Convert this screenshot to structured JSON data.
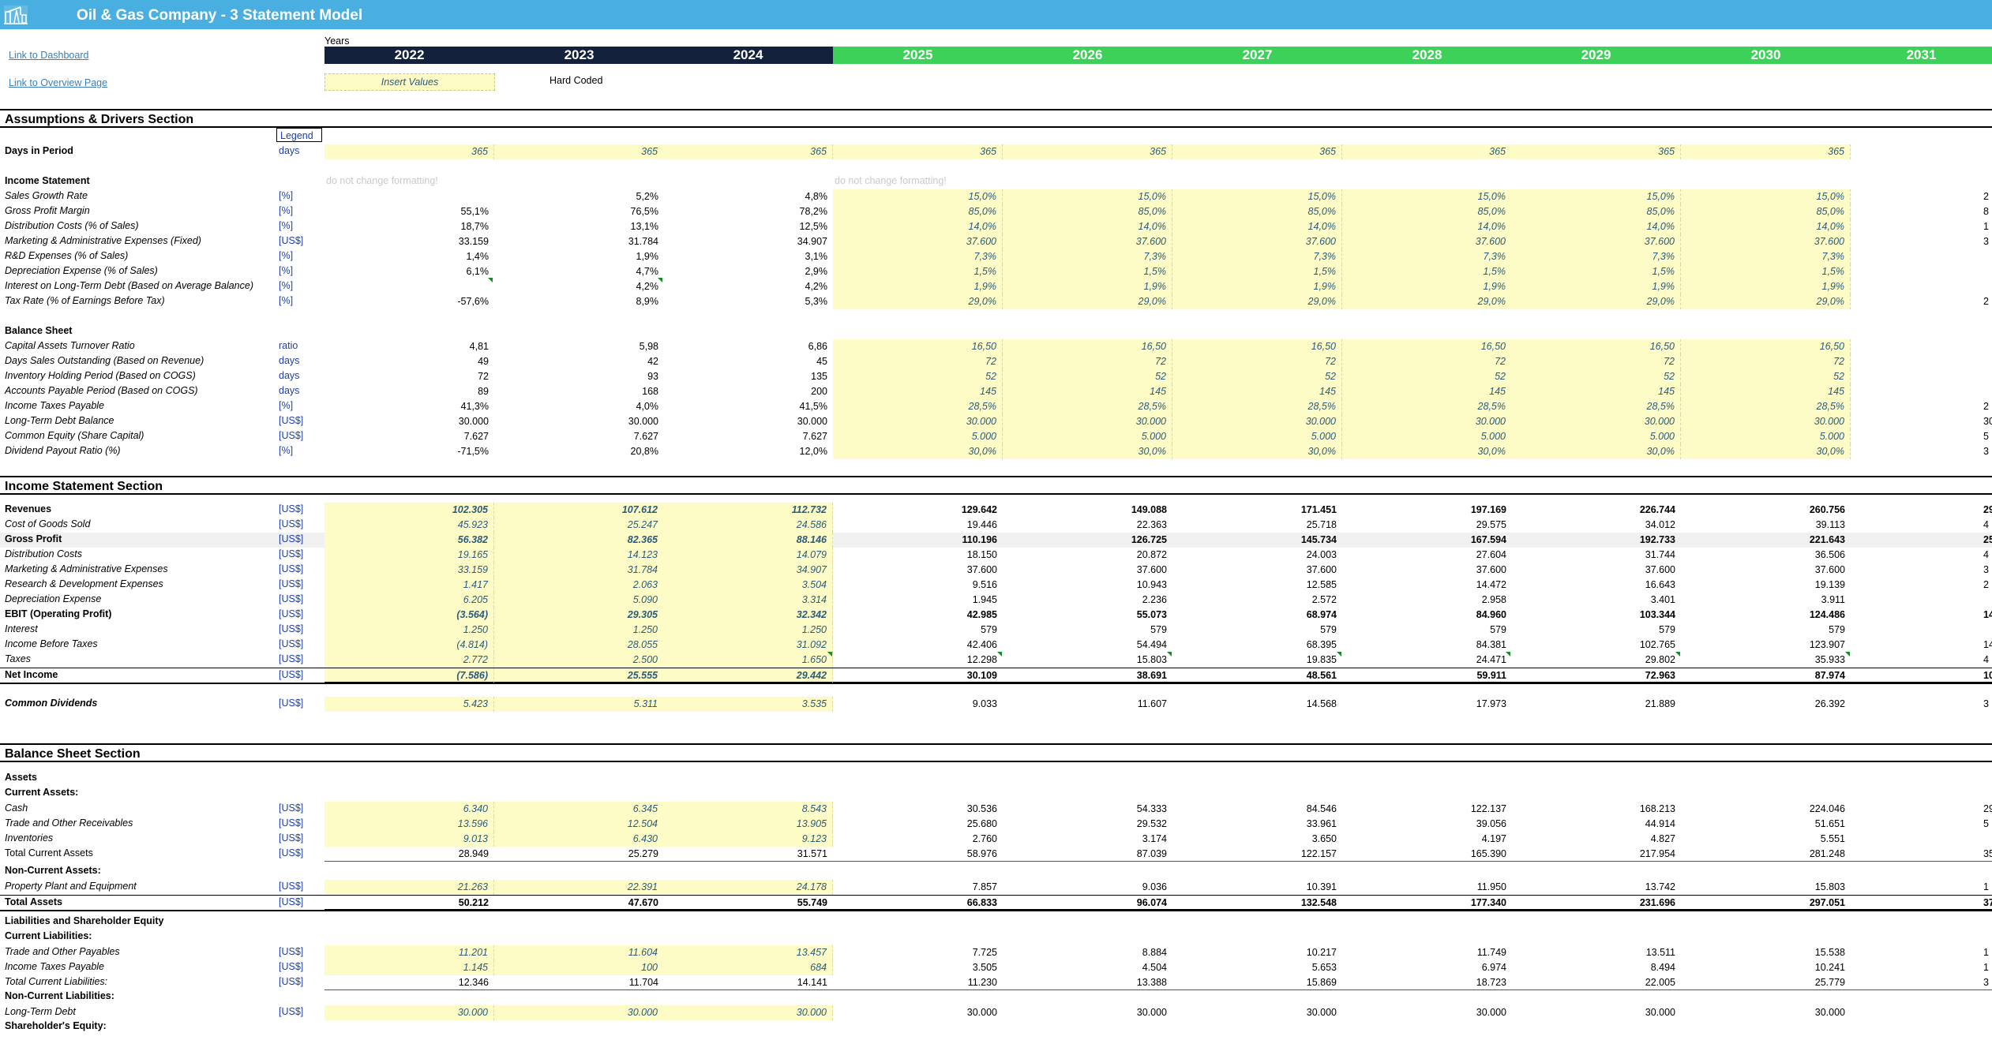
{
  "header": {
    "title": "Oil & Gas Company  - 3 Statement Model",
    "logo_icon": "oil-pump-icon"
  },
  "links": {
    "dashboard": "Link to Dashboard",
    "overview": "Link to Overview Page"
  },
  "years": {
    "label": "Years",
    "list": [
      "2022",
      "2023",
      "2024",
      "2025",
      "2026",
      "2027",
      "2028",
      "2029",
      "2030",
      "2031"
    ],
    "historical_color": "#14213d",
    "forecast_color": "#3ed15a"
  },
  "legend": {
    "insert_values": "Insert Values",
    "hard_coded": "Hard Coded",
    "legend_label": "Legend"
  },
  "hints": {
    "hist": "do not change formatting!",
    "fc": "do not change formatting!"
  },
  "sections": {
    "assumptions": "Assumptions & Drivers Section",
    "income": "Income Statement Section",
    "balance": "Balance Sheet Section"
  },
  "days": {
    "label": "Days in Period",
    "unit": "days",
    "values": [
      "365",
      "365",
      "365",
      "365",
      "365",
      "365",
      "365",
      "365",
      "365",
      ""
    ]
  },
  "subheaders": {
    "is": "Income Statement",
    "bs": "Balance Sheet",
    "assets": "Assets",
    "cur_assets": "Current Assets:",
    "noncur_assets": "Non-Current Assets:",
    "liab_eq": "Liabilities and Shareholder Equity",
    "cur_liab": "Current Liabilities:",
    "noncur_liab": "Non-Current Liabilities:",
    "sh_equity": "Shareholder's Equity:"
  },
  "is_drivers": [
    {
      "label": "Sales Growth Rate",
      "unit": "[%]",
      "values": [
        "",
        "5,2%",
        "4,8%",
        "15,0%",
        "15,0%",
        "15,0%",
        "15,0%",
        "15,0%",
        "15,0%",
        "2"
      ]
    },
    {
      "label": "Gross Profit Margin",
      "unit": "[%]",
      "values": [
        "55,1%",
        "76,5%",
        "78,2%",
        "85,0%",
        "85,0%",
        "85,0%",
        "85,0%",
        "85,0%",
        "85,0%",
        "8"
      ]
    },
    {
      "label": "Distribution Costs (% of Sales)",
      "unit": "[%]",
      "values": [
        "18,7%",
        "13,1%",
        "12,5%",
        "14,0%",
        "14,0%",
        "14,0%",
        "14,0%",
        "14,0%",
        "14,0%",
        "1"
      ]
    },
    {
      "label": "Marketing & Administrative Expenses (Fixed)",
      "unit": "[US$]",
      "values": [
        "33.159",
        "31.784",
        "34.907",
        "37.600",
        "37.600",
        "37.600",
        "37.600",
        "37.600",
        "37.600",
        "3"
      ]
    },
    {
      "label": "R&D Expenses (% of Sales)",
      "unit": "[%]",
      "values": [
        "1,4%",
        "1,9%",
        "3,1%",
        "7,3%",
        "7,3%",
        "7,3%",
        "7,3%",
        "7,3%",
        "7,3%",
        ""
      ]
    },
    {
      "label": "Depreciation Expense (% of Sales)",
      "unit": "[%]",
      "values": [
        "6,1%",
        "4,7%",
        "2,9%",
        "1,5%",
        "1,5%",
        "1,5%",
        "1,5%",
        "1,5%",
        "1,5%",
        ""
      ]
    },
    {
      "label": "Interest on Long-Term Debt (Based on Average Balance)",
      "unit": "[%]",
      "values": [
        "",
        "4,2%",
        "4,2%",
        "1,9%",
        "1,9%",
        "1,9%",
        "1,9%",
        "1,9%",
        "1,9%",
        ""
      ]
    },
    {
      "label": "Tax Rate (% of Earnings Before Tax)",
      "unit": "[%]",
      "values": [
        "-57,6%",
        "8,9%",
        "5,3%",
        "29,0%",
        "29,0%",
        "29,0%",
        "29,0%",
        "29,0%",
        "29,0%",
        "2"
      ]
    }
  ],
  "bs_drivers": [
    {
      "label": "Capital Assets Turnover Ratio",
      "unit": "ratio",
      "values": [
        "4,81",
        "5,98",
        "6,86",
        "16,50",
        "16,50",
        "16,50",
        "16,50",
        "16,50",
        "16,50",
        ""
      ]
    },
    {
      "label": "Days Sales Outstanding (Based on Revenue)",
      "unit": "days",
      "values": [
        "49",
        "42",
        "45",
        "72",
        "72",
        "72",
        "72",
        "72",
        "72",
        ""
      ]
    },
    {
      "label": "Inventory Holding Period (Based on COGS)",
      "unit": "days",
      "values": [
        "72",
        "93",
        "135",
        "52",
        "52",
        "52",
        "52",
        "52",
        "52",
        ""
      ]
    },
    {
      "label": "Accounts Payable Period (Based on COGS)",
      "unit": "days",
      "values": [
        "89",
        "168",
        "200",
        "145",
        "145",
        "145",
        "145",
        "145",
        "145",
        ""
      ]
    },
    {
      "label": "Income Taxes Payable",
      "unit": "[%]",
      "values": [
        "41,3%",
        "4,0%",
        "41,5%",
        "28,5%",
        "28,5%",
        "28,5%",
        "28,5%",
        "28,5%",
        "28,5%",
        "2"
      ]
    },
    {
      "label": "Long-Term Debt Balance",
      "unit": "[US$]",
      "values": [
        "30.000",
        "30.000",
        "30.000",
        "30.000",
        "30.000",
        "30.000",
        "30.000",
        "30.000",
        "30.000",
        "30"
      ]
    },
    {
      "label": "Common Equity (Share Capital)",
      "unit": "[US$]",
      "values": [
        "7.627",
        "7.627",
        "7.627",
        "5.000",
        "5.000",
        "5.000",
        "5.000",
        "5.000",
        "5.000",
        "5"
      ]
    },
    {
      "label": "Dividend Payout Ratio (%)",
      "unit": "[%]",
      "values": [
        "-71,5%",
        "20,8%",
        "12,0%",
        "30,0%",
        "30,0%",
        "30,0%",
        "30,0%",
        "30,0%",
        "30,0%",
        "3"
      ]
    }
  ],
  "income": [
    {
      "label": "Revenues",
      "unit": "[US$]",
      "style": "bold",
      "values": [
        "102.305",
        "107.612",
        "112.732",
        "129.642",
        "149.088",
        "171.451",
        "197.169",
        "226.744",
        "260.756",
        "29"
      ]
    },
    {
      "label": "Cost of Goods Sold",
      "unit": "[US$]",
      "style": "ital",
      "values": [
        "45.923",
        "25.247",
        "24.586",
        "19.446",
        "22.363",
        "25.718",
        "29.575",
        "34.012",
        "39.113",
        "4"
      ]
    },
    {
      "label": "Gross Profit",
      "unit": "[US$]",
      "style": "boldgray",
      "values": [
        "56.382",
        "82.365",
        "88.146",
        "110.196",
        "126.725",
        "145.734",
        "167.594",
        "192.733",
        "221.643",
        "25"
      ]
    },
    {
      "label": "Distribution Costs",
      "unit": "[US$]",
      "style": "ital",
      "values": [
        "19.165",
        "14.123",
        "14.079",
        "18.150",
        "20.872",
        "24.003",
        "27.604",
        "31.744",
        "36.506",
        "4"
      ]
    },
    {
      "label": "Marketing & Administrative Expenses",
      "unit": "[US$]",
      "style": "ital",
      "values": [
        "33.159",
        "31.784",
        "34.907",
        "37.600",
        "37.600",
        "37.600",
        "37.600",
        "37.600",
        "37.600",
        "3"
      ]
    },
    {
      "label": "Research & Development Expenses",
      "unit": "[US$]",
      "style": "ital",
      "values": [
        "1.417",
        "2.063",
        "3.504",
        "9.516",
        "10.943",
        "12.585",
        "14.472",
        "16.643",
        "19.139",
        "2"
      ]
    },
    {
      "label": "Depreciation Expense",
      "unit": "[US$]",
      "style": "ital",
      "values": [
        "6.205",
        "5.090",
        "3.314",
        "1.945",
        "2.236",
        "2.572",
        "2.958",
        "3.401",
        "3.911",
        ""
      ]
    },
    {
      "label": "EBIT (Operating Profit)",
      "unit": "[US$]",
      "style": "bold",
      "values": [
        "(3.564)",
        "29.305",
        "32.342",
        "42.985",
        "55.073",
        "68.974",
        "84.960",
        "103.344",
        "124.486",
        "14"
      ]
    },
    {
      "label": "Interest",
      "unit": "[US$]",
      "style": "ital",
      "values": [
        "1.250",
        "1.250",
        "1.250",
        "579",
        "579",
        "579",
        "579",
        "579",
        "579",
        ""
      ]
    },
    {
      "label": "Income Before Taxes",
      "unit": "[US$]",
      "style": "ital",
      "values": [
        "(4.814)",
        "28.055",
        "31.092",
        "42.406",
        "54.494",
        "68.395",
        "84.381",
        "102.765",
        "123.907",
        "14"
      ]
    },
    {
      "label": "Taxes",
      "unit": "[US$]",
      "style": "ital",
      "values": [
        "2.772",
        "2.500",
        "1.650",
        "12.298",
        "15.803",
        "19.835",
        "24.471",
        "29.802",
        "35.933",
        "4"
      ]
    },
    {
      "label": "Net Income",
      "unit": "[US$]",
      "style": "net",
      "values": [
        "(7.586)",
        "25.555",
        "29.442",
        "30.109",
        "38.691",
        "48.561",
        "59.911",
        "72.963",
        "87.974",
        "10"
      ]
    }
  ],
  "dividends": {
    "label": "Common Dividends",
    "unit": "[US$]",
    "values": [
      "5.423",
      "5.311",
      "3.535",
      "9.033",
      "11.607",
      "14.568",
      "17.973",
      "21.889",
      "26.392",
      "3"
    ]
  },
  "assets": [
    {
      "label": "Cash",
      "unit": "[US$]",
      "style": "ital",
      "values": [
        "6.340",
        "6.345",
        "8.543",
        "30.536",
        "54.333",
        "84.546",
        "122.137",
        "168.213",
        "224.046",
        "29"
      ]
    },
    {
      "label": "Trade and Other Receivables",
      "unit": "[US$]",
      "style": "ital",
      "values": [
        "13.596",
        "12.504",
        "13.905",
        "25.680",
        "29.532",
        "33.961",
        "39.056",
        "44.914",
        "51.651",
        "5"
      ]
    },
    {
      "label": "Inventories",
      "unit": "[US$]",
      "style": "ital",
      "values": [
        "9.013",
        "6.430",
        "9.123",
        "2.760",
        "3.174",
        "3.650",
        "4.197",
        "4.827",
        "5.551",
        ""
      ]
    },
    {
      "label": "Total Current Assets",
      "unit": "[US$]",
      "style": "total",
      "values": [
        "28.949",
        "25.279",
        "31.571",
        "58.976",
        "87.039",
        "122.157",
        "165.390",
        "217.954",
        "281.248",
        "35"
      ]
    }
  ],
  "noncur_assets": [
    {
      "label": "Property Plant and Equipment",
      "unit": "[US$]",
      "style": "ital",
      "values": [
        "21.263",
        "22.391",
        "24.178",
        "7.857",
        "9.036",
        "10.391",
        "11.950",
        "13.742",
        "15.803",
        "1"
      ]
    },
    {
      "label": "Total Assets",
      "unit": "[US$]",
      "style": "net",
      "values": [
        "50.212",
        "47.670",
        "55.749",
        "66.833",
        "96.074",
        "132.548",
        "177.340",
        "231.696",
        "297.051",
        "37"
      ]
    }
  ],
  "cur_liab": [
    {
      "label": "Trade and Other Payables",
      "unit": "[US$]",
      "style": "ital",
      "values": [
        "11.201",
        "11.604",
        "13.457",
        "7.725",
        "8.884",
        "10.217",
        "11.749",
        "13.511",
        "15.538",
        "1"
      ]
    },
    {
      "label": "Income Taxes Payable",
      "unit": "[US$]",
      "style": "ital",
      "values": [
        "1.145",
        "100",
        "684",
        "3.505",
        "4.504",
        "5.653",
        "6.974",
        "8.494",
        "10.241",
        "1"
      ]
    },
    {
      "label": "Total Current Liabilities:",
      "unit": "[US$]",
      "style": "totalital",
      "values": [
        "12.346",
        "11.704",
        "14.141",
        "11.230",
        "13.388",
        "15.869",
        "18.723",
        "22.005",
        "25.779",
        "3"
      ]
    }
  ],
  "noncur_liab": [
    {
      "label": "Long-Term Debt",
      "unit": "[US$]",
      "style": "ital",
      "values": [
        "30.000",
        "30.000",
        "30.000",
        "30.000",
        "30.000",
        "30.000",
        "30.000",
        "30.000",
        "30.000",
        ""
      ]
    }
  ]
}
